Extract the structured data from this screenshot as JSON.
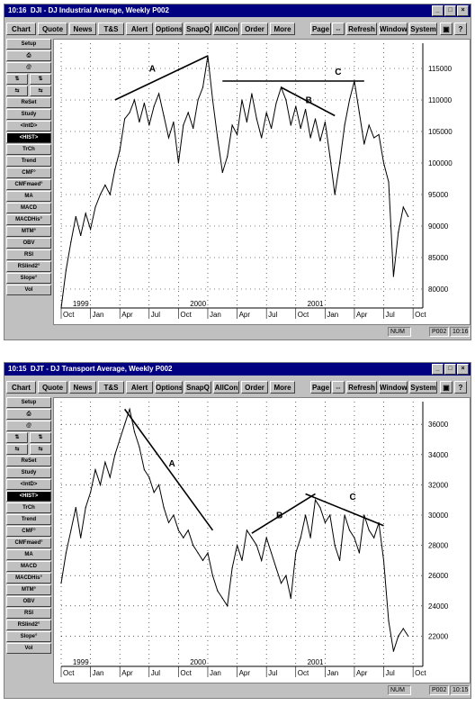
{
  "windows": [
    {
      "clock": "10:16",
      "title": "DJI - DJ Industrial Average, Weekly   P002",
      "status_num": "NUM",
      "status_page": "P002",
      "status_time": "10:16"
    },
    {
      "clock": "10:15",
      "title": "DJT - DJ Transport Average, Weekly   P002",
      "status_num": "NUM",
      "status_page": "P002",
      "status_time": "10:15"
    }
  ],
  "toolbar": {
    "chart": "Chart",
    "quote": "Quote",
    "news": "News",
    "ts": "T&S",
    "alert": "Alert",
    "options": "Options",
    "snapq": "SnapQ",
    "allcon": "AllCon",
    "order": "Order",
    "more": "More",
    "page": "Page",
    "arrows": "⇔",
    "refresh": "Refresh",
    "window": "Window",
    "system": "System",
    "restore": "▣",
    "help": "?"
  },
  "titlebar_buttons": {
    "minimize": "_",
    "maximize": "□",
    "close": "×"
  },
  "sidebar": {
    "setup": "Setup",
    "print": "⎙",
    "at": "@",
    "p1a": "⇅",
    "p1b": "⇅",
    "p2a": "⇆",
    "p2b": "⇆",
    "reset": "ReSet",
    "study": "Study",
    "intd": "<IntD>",
    "hist": "<HIST>",
    "trch": "TrCh",
    "trend": "Trend",
    "cmf": "CMF°",
    "cmfmaed": "CMFmaed°",
    "ma": "MA",
    "macd": "MACD",
    "macdhis": "MACDHis°",
    "mtm": "MTM°",
    "obv": "OBV",
    "rsi": "RSI",
    "rsiind": "RSIind2°",
    "slope": "Slope°",
    "vol": "Vol"
  },
  "chart_data": [
    {
      "type": "line",
      "x_tick_labels": [
        "Oct",
        "Jan",
        "Apr",
        "Jul",
        "Oct",
        "Jan",
        "Apr",
        "Jul",
        "Oct",
        "Jan",
        "Apr",
        "Jul",
        "Oct"
      ],
      "year_labels": [
        {
          "label": "1999",
          "at_month": 1
        },
        {
          "label": "2000",
          "at_month": 13
        },
        {
          "label": "2001",
          "at_month": 25
        }
      ],
      "y_tick_labels": [
        "80000",
        "85000",
        "90000",
        "95000",
        "100000",
        "105000",
        "110000",
        "115000"
      ],
      "y_ticks": [
        80000,
        85000,
        90000,
        95000,
        100000,
        105000,
        110000,
        115000
      ],
      "ylim": [
        77000,
        119000
      ],
      "xlim": [
        0,
        37
      ],
      "grid": "dotted",
      "series": [
        {
          "points": [
            [
              0,
              77000
            ],
            [
              0.5,
              83000
            ],
            [
              1,
              87500
            ],
            [
              1.5,
              91500
            ],
            [
              2,
              88500
            ],
            [
              2.5,
              92000
            ],
            [
              3,
              89500
            ],
            [
              3.5,
              93000
            ],
            [
              4,
              95000
            ],
            [
              4.5,
              96500
            ],
            [
              5,
              95000
            ],
            [
              5.5,
              99000
            ],
            [
              6,
              102000
            ],
            [
              6.5,
              107000
            ],
            [
              7,
              108000
            ],
            [
              7.5,
              110000
            ],
            [
              8,
              106500
            ],
            [
              8.5,
              109500
            ],
            [
              9,
              106000
            ],
            [
              9.5,
              109000
            ],
            [
              10,
              111000
            ],
            [
              10.5,
              107500
            ],
            [
              11,
              104000
            ],
            [
              11.5,
              106500
            ],
            [
              12,
              100000
            ],
            [
              12.5,
              106000
            ],
            [
              13,
              108000
            ],
            [
              13.5,
              105500
            ],
            [
              14,
              110000
            ],
            [
              14.5,
              112000
            ],
            [
              15,
              117000
            ],
            [
              15.5,
              110000
            ],
            [
              16,
              104000
            ],
            [
              16.5,
              98500
            ],
            [
              17,
              101000
            ],
            [
              17.5,
              106000
            ],
            [
              18,
              104500
            ],
            [
              18.5,
              110000
            ],
            [
              19,
              106500
            ],
            [
              19.5,
              111000
            ],
            [
              20,
              107000
            ],
            [
              20.5,
              104000
            ],
            [
              21,
              108000
            ],
            [
              21.5,
              105500
            ],
            [
              22,
              109500
            ],
            [
              22.5,
              112000
            ],
            [
              23,
              110000
            ],
            [
              23.5,
              106000
            ],
            [
              24,
              109000
            ],
            [
              24.5,
              105500
            ],
            [
              25,
              108500
            ],
            [
              25.5,
              104000
            ],
            [
              26,
              107000
            ],
            [
              26.5,
              103500
            ],
            [
              27,
              106500
            ],
            [
              27.5,
              101000
            ],
            [
              28,
              95000
            ],
            [
              28.5,
              100000
            ],
            [
              29,
              106000
            ],
            [
              29.5,
              110000
            ],
            [
              30,
              113000
            ],
            [
              30.5,
              108000
            ],
            [
              31,
              103000
            ],
            [
              31.5,
              106000
            ],
            [
              32,
              104000
            ],
            [
              32.5,
              104500
            ],
            [
              33,
              100000
            ],
            [
              33.5,
              97000
            ],
            [
              34,
              82000
            ],
            [
              34.5,
              89000
            ],
            [
              35,
              93000
            ],
            [
              35.5,
              91500
            ]
          ]
        }
      ],
      "trendlines": [
        {
          "label": "A",
          "from": [
            5.5,
            110000
          ],
          "to": [
            15,
            117000
          ],
          "label_at": [
            9,
            114500
          ]
        },
        {
          "label": "B",
          "from": [
            22.5,
            112000
          ],
          "to": [
            28,
            107500
          ],
          "label_at": [
            25,
            109500
          ]
        },
        {
          "label": "C",
          "from": [
            16.5,
            113000
          ],
          "to": [
            31,
            113000
          ],
          "label_at": [
            28,
            114000
          ]
        }
      ]
    },
    {
      "type": "line",
      "x_tick_labels": [
        "Oct",
        "Jan",
        "Apr",
        "Jul",
        "Oct",
        "Jan",
        "Apr",
        "Jul",
        "Oct",
        "Jan",
        "Apr",
        "Jul",
        "Oct"
      ],
      "year_labels": [
        {
          "label": "1999",
          "at_month": 1
        },
        {
          "label": "2000",
          "at_month": 13
        },
        {
          "label": "2001",
          "at_month": 25
        }
      ],
      "y_tick_labels": [
        "22000",
        "24000",
        "26000",
        "28000",
        "30000",
        "32000",
        "34000",
        "36000"
      ],
      "y_ticks": [
        22000,
        24000,
        26000,
        28000,
        30000,
        32000,
        34000,
        36000
      ],
      "ylim": [
        20000,
        37500
      ],
      "xlim": [
        0,
        37
      ],
      "grid": "dotted",
      "series": [
        {
          "points": [
            [
              0,
              25500
            ],
            [
              0.5,
              27500
            ],
            [
              1,
              29000
            ],
            [
              1.5,
              30500
            ],
            [
              2,
              28500
            ],
            [
              2.5,
              30500
            ],
            [
              3,
              31500
            ],
            [
              3.5,
              33000
            ],
            [
              4,
              32000
            ],
            [
              4.5,
              33500
            ],
            [
              5,
              32500
            ],
            [
              5.5,
              34000
            ],
            [
              6,
              35000
            ],
            [
              6.5,
              36000
            ],
            [
              7,
              37000
            ],
            [
              7.5,
              35500
            ],
            [
              8,
              34500
            ],
            [
              8.5,
              33000
            ],
            [
              9,
              32500
            ],
            [
              9.5,
              31500
            ],
            [
              10,
              32000
            ],
            [
              10.5,
              30500
            ],
            [
              11,
              29500
            ],
            [
              11.5,
              30000
            ],
            [
              12,
              29000
            ],
            [
              12.5,
              28500
            ],
            [
              13,
              29000
            ],
            [
              13.5,
              28000
            ],
            [
              14,
              27500
            ],
            [
              14.5,
              27000
            ],
            [
              15,
              27500
            ],
            [
              15.5,
              26000
            ],
            [
              16,
              25000
            ],
            [
              16.5,
              24500
            ],
            [
              17,
              24000
            ],
            [
              17.5,
              26500
            ],
            [
              18,
              28000
            ],
            [
              18.5,
              27000
            ],
            [
              19,
              29000
            ],
            [
              19.5,
              28500
            ],
            [
              20,
              28000
            ],
            [
              20.5,
              27000
            ],
            [
              21,
              28500
            ],
            [
              21.5,
              27500
            ],
            [
              22,
              26500
            ],
            [
              22.5,
              25500
            ],
            [
              23,
              26000
            ],
            [
              23.5,
              24500
            ],
            [
              24,
              27500
            ],
            [
              24.5,
              28500
            ],
            [
              25,
              30000
            ],
            [
              25.5,
              28500
            ],
            [
              26,
              31000
            ],
            [
              26.5,
              30500
            ],
            [
              27,
              29500
            ],
            [
              27.5,
              30000
            ],
            [
              28,
              28000
            ],
            [
              28.5,
              27000
            ],
            [
              29,
              30000
            ],
            [
              29.5,
              29000
            ],
            [
              30,
              28500
            ],
            [
              30.5,
              27500
            ],
            [
              31,
              30000
            ],
            [
              31.5,
              29000
            ],
            [
              32,
              28500
            ],
            [
              32.5,
              29500
            ],
            [
              33,
              27000
            ],
            [
              33.5,
              23000
            ],
            [
              34,
              21000
            ],
            [
              34.5,
              22000
            ],
            [
              35,
              22500
            ],
            [
              35.5,
              22000
            ]
          ]
        }
      ],
      "trendlines": [
        {
          "label": "A",
          "from": [
            6.5,
            37000
          ],
          "to": [
            15.5,
            29000
          ],
          "label_at": [
            11,
            33200
          ]
        },
        {
          "label": "B",
          "from": [
            19.5,
            28800
          ],
          "to": [
            26,
            31400
          ],
          "label_at": [
            22,
            29800
          ]
        },
        {
          "label": "C",
          "from": [
            25,
            31400
          ],
          "to": [
            33,
            29300
          ],
          "label_at": [
            29.5,
            31000
          ]
        }
      ]
    }
  ]
}
